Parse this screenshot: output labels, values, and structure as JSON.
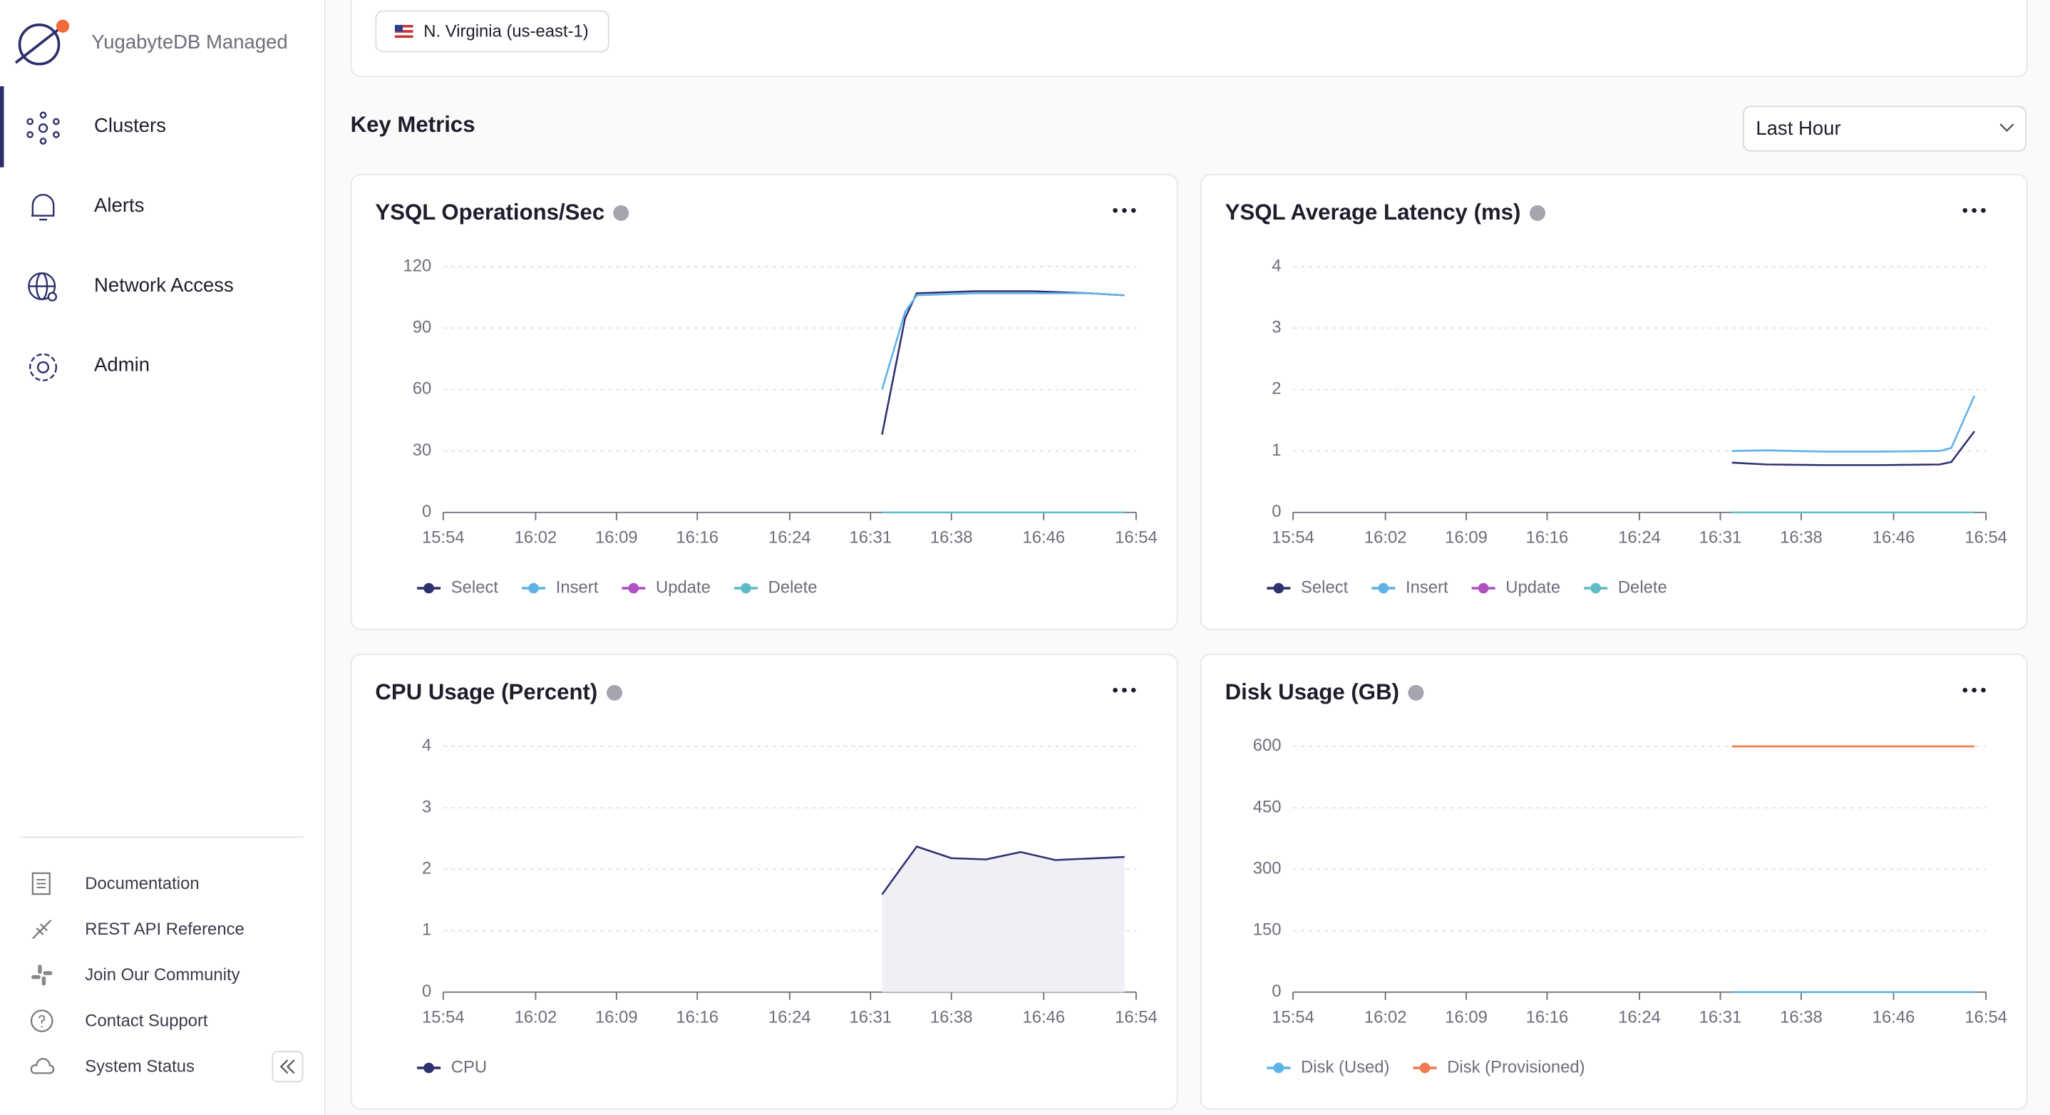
{
  "sidebar": {
    "brand": "YugabyteDB Managed",
    "nav": [
      "Clusters",
      "Alerts",
      "Network Access",
      "Admin"
    ],
    "links": [
      "Documentation",
      "REST API Reference",
      "Join Our Community",
      "Contact Support",
      "System Status"
    ]
  },
  "region": "N. Virginia (us-east-1)",
  "section_title": "Key Metrics",
  "time_range": "Last Hour",
  "chart_data": [
    {
      "type": "line",
      "title": "YSQL Operations/Sec",
      "x": [
        "16:32",
        "16:34",
        "16:35",
        "16:40",
        "16:45",
        "16:50",
        "16:53"
      ],
      "series": [
        {
          "name": "Select",
          "color": "#2f3070",
          "values": [
            38,
            95,
            107,
            108,
            108,
            107,
            106
          ]
        },
        {
          "name": "Insert",
          "color": "#5fb2e8",
          "values": [
            60,
            98,
            106,
            107,
            107,
            107,
            106
          ]
        },
        {
          "name": "Update",
          "color": "#b051c2",
          "values": [
            0,
            0,
            0,
            0,
            0,
            0,
            0
          ]
        },
        {
          "name": "Delete",
          "color": "#5fbcc4",
          "values": [
            0,
            0,
            0,
            0,
            0,
            0,
            0
          ]
        }
      ],
      "xlim": [
        "15:54",
        "16:54"
      ],
      "xticks": [
        "15:54",
        "16:02",
        "16:09",
        "16:16",
        "16:24",
        "16:31",
        "16:38",
        "16:46",
        "16:54"
      ],
      "ylim": [
        0,
        120
      ],
      "yticks": [
        0,
        30,
        60,
        90,
        120
      ],
      "grid": true
    },
    {
      "type": "line",
      "title": "YSQL Average Latency (ms)",
      "x": [
        "16:32",
        "16:35",
        "16:40",
        "16:45",
        "16:50",
        "16:51",
        "16:53"
      ],
      "series": [
        {
          "name": "Select",
          "color": "#2f3070",
          "values": [
            0.81,
            0.78,
            0.77,
            0.77,
            0.78,
            0.82,
            1.32
          ]
        },
        {
          "name": "Insert",
          "color": "#5fb2e8",
          "values": [
            1.0,
            1.01,
            0.99,
            0.99,
            1.0,
            1.05,
            1.9
          ]
        },
        {
          "name": "Update",
          "color": "#b051c2",
          "values": [
            0,
            0,
            0,
            0,
            0,
            0,
            0
          ]
        },
        {
          "name": "Delete",
          "color": "#5fbcc4",
          "values": [
            0,
            0,
            0,
            0,
            0,
            0,
            0
          ]
        }
      ],
      "xlim": [
        "15:54",
        "16:54"
      ],
      "xticks": [
        "15:54",
        "16:02",
        "16:09",
        "16:16",
        "16:24",
        "16:31",
        "16:38",
        "16:46",
        "16:54"
      ],
      "ylim": [
        0,
        4
      ],
      "yticks": [
        0,
        1,
        2,
        3,
        4
      ],
      "grid": true
    },
    {
      "type": "area",
      "title": "CPU Usage (Percent)",
      "x": [
        "16:32",
        "16:35",
        "16:38",
        "16:41",
        "16:44",
        "16:47",
        "16:53"
      ],
      "series": [
        {
          "name": "CPU",
          "color": "#2f3070",
          "fill": "#f0eff5",
          "values": [
            1.59,
            2.37,
            2.18,
            2.16,
            2.28,
            2.15,
            2.2
          ]
        }
      ],
      "xlim": [
        "15:54",
        "16:54"
      ],
      "xticks": [
        "15:54",
        "16:02",
        "16:09",
        "16:16",
        "16:24",
        "16:31",
        "16:38",
        "16:46",
        "16:54"
      ],
      "ylim": [
        0,
        4
      ],
      "yticks": [
        0,
        1,
        2,
        3,
        4
      ],
      "grid": true
    },
    {
      "type": "line",
      "title": "Disk Usage (GB)",
      "x": [
        "16:32",
        "16:40",
        "16:45",
        "16:53"
      ],
      "series": [
        {
          "name": "Disk (Used)",
          "color": "#5fb2e8",
          "values": [
            0,
            0,
            0,
            0
          ]
        },
        {
          "name": "Disk (Provisioned)",
          "color": "#f07a4f",
          "values": [
            600,
            600,
            600,
            600
          ]
        }
      ],
      "xlim": [
        "15:54",
        "16:54"
      ],
      "xticks": [
        "15:54",
        "16:02",
        "16:09",
        "16:16",
        "16:24",
        "16:31",
        "16:38",
        "16:46",
        "16:54"
      ],
      "ylim": [
        0,
        600
      ],
      "yticks": [
        0,
        150,
        300,
        450,
        600
      ],
      "grid": true
    }
  ]
}
